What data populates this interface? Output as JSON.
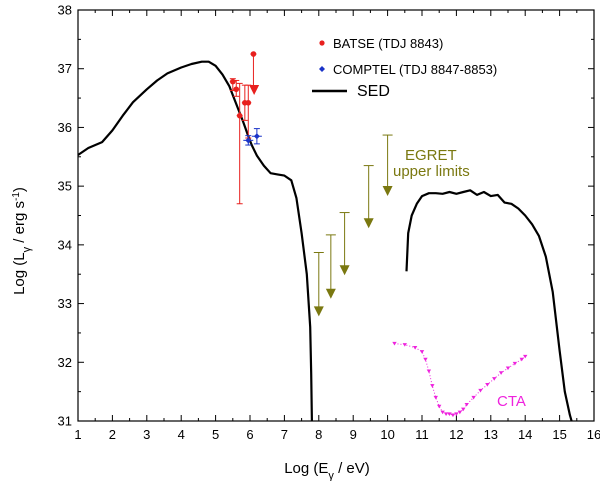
{
  "chart_data": {
    "type": "line",
    "xlabel_main": "Log (E",
    "xlabel_sub": "γ",
    "xlabel_tail": " / eV)",
    "ylabel_main": "Log (L",
    "ylabel_sub": "γ",
    "ylabel_tail": " / erg s",
    "ylabel_sup": "-1",
    "ylabel_close": ")",
    "xlim": [
      1,
      16
    ],
    "ylim": [
      31,
      38
    ],
    "xticks": [
      "1",
      "2",
      "3",
      "4",
      "5",
      "6",
      "7",
      "8",
      "9",
      "10",
      "11",
      "12",
      "13",
      "14",
      "15",
      "16"
    ],
    "yticks": [
      "31",
      "32",
      "33",
      "34",
      "35",
      "36",
      "37",
      "38"
    ],
    "legend": {
      "position": "top-right",
      "entries": [
        {
          "label": "BATSE (TDJ 8843)",
          "color": "#e8201e",
          "marker": "circle"
        },
        {
          "label": "COMPTEL (TDJ 8847-8853)",
          "color": "#1a33c8",
          "marker": "diamond"
        },
        {
          "label": "SED",
          "color": "#000000",
          "marker": "line"
        }
      ]
    },
    "annotations": {
      "egret_line1": "EGRET",
      "egret_line2": "upper limits",
      "cta": "CTA"
    },
    "colors": {
      "batse": "#e8201e",
      "comptel": "#1a33c8",
      "sed": "#000000",
      "egret": "#7a7810",
      "cta": "#ee22dd"
    },
    "series": [
      {
        "name": "SED",
        "segment": "low",
        "x": [
          1.0,
          1.3,
          1.7,
          2.0,
          2.3,
          2.6,
          3.0,
          3.3,
          3.6,
          4.0,
          4.3,
          4.6,
          4.8,
          5.0,
          5.2,
          5.4,
          5.6,
          5.8,
          5.95,
          6.05,
          6.2,
          6.4,
          6.6,
          6.8,
          7.0,
          7.2,
          7.35,
          7.5,
          7.65,
          7.75,
          7.78,
          7.8
        ],
        "y": [
          35.53,
          35.65,
          35.75,
          35.95,
          36.2,
          36.43,
          36.65,
          36.8,
          36.92,
          37.02,
          37.08,
          37.12,
          37.12,
          37.05,
          36.9,
          36.7,
          36.4,
          36.1,
          35.85,
          35.7,
          35.52,
          35.35,
          35.22,
          35.2,
          35.18,
          35.1,
          34.8,
          34.2,
          33.5,
          32.6,
          31.8,
          31.0
        ]
      },
      {
        "name": "SED",
        "segment": "high",
        "x": [
          10.55,
          10.6,
          10.7,
          10.85,
          11.0,
          11.2,
          11.4,
          11.6,
          11.8,
          12.0,
          12.2,
          12.4,
          12.6,
          12.8,
          13.0,
          13.2,
          13.4,
          13.6,
          13.8,
          14.0,
          14.2,
          14.4,
          14.6,
          14.8,
          15.0,
          15.15,
          15.3,
          15.35
        ],
        "y": [
          33.55,
          34.2,
          34.5,
          34.7,
          34.83,
          34.88,
          34.88,
          34.87,
          34.9,
          34.87,
          34.9,
          34.93,
          34.85,
          34.9,
          34.83,
          34.85,
          34.72,
          34.7,
          34.62,
          34.5,
          34.35,
          34.15,
          33.8,
          33.2,
          32.2,
          31.5,
          31.1,
          31.0
        ]
      },
      {
        "name": "BATSE (TDJ 8843)",
        "points": [
          {
            "x": 5.5,
            "y": 36.78,
            "yerr_lo": 0.15,
            "yerr_hi": 0.05
          },
          {
            "x": 5.6,
            "y": 36.65,
            "yerr_lo": 0.12,
            "yerr_hi": 0.15
          },
          {
            "x": 5.7,
            "y": 36.2,
            "yerr_lo": 1.5,
            "yerr_hi": 0.55
          },
          {
            "x": 5.85,
            "y": 36.42,
            "yerr_lo": 0.3,
            "yerr_hi": 0.3
          },
          {
            "x": 5.95,
            "y": 36.42,
            "yerr_lo": 0.6,
            "yerr_hi": 0.3
          },
          {
            "x": 6.1,
            "y": 37.25,
            "yerr_lo": 0.55,
            "yerr_hi": 0.0
          }
        ]
      },
      {
        "name": "COMPTEL (TDJ 8847-8853)",
        "points": [
          {
            "x": 5.95,
            "y": 35.78,
            "yerr_lo": 0.08,
            "yerr_hi": 0.08
          },
          {
            "x": 6.2,
            "y": 35.85,
            "yerr_lo": 0.13,
            "yerr_hi": 0.13
          }
        ]
      },
      {
        "name": "EGRET upper limits",
        "limits": [
          {
            "x": 8.0,
            "y_top": 33.87,
            "y_arrow": 32.8
          },
          {
            "x": 8.35,
            "y_top": 34.17,
            "y_arrow": 33.1
          },
          {
            "x": 8.75,
            "y_top": 34.55,
            "y_arrow": 33.5
          },
          {
            "x": 9.45,
            "y_top": 35.35,
            "y_arrow": 34.3
          },
          {
            "x": 10.0,
            "y_top": 35.87,
            "y_arrow": 34.85
          }
        ]
      },
      {
        "name": "CTA",
        "x": [
          10.2,
          10.5,
          10.8,
          11.0,
          11.1,
          11.2,
          11.3,
          11.4,
          11.5,
          11.6,
          11.7,
          11.8,
          11.9,
          12.0,
          12.1,
          12.2,
          12.3,
          12.5,
          12.7,
          12.9,
          13.1,
          13.3,
          13.5,
          13.7,
          13.9,
          14.0
        ],
        "y": [
          32.32,
          32.3,
          32.25,
          32.18,
          32.05,
          31.85,
          31.6,
          31.4,
          31.25,
          31.15,
          31.12,
          31.12,
          31.1,
          31.12,
          31.15,
          31.2,
          31.28,
          31.4,
          31.52,
          31.62,
          31.72,
          31.82,
          31.9,
          31.98,
          32.05,
          32.1
        ]
      }
    ]
  }
}
